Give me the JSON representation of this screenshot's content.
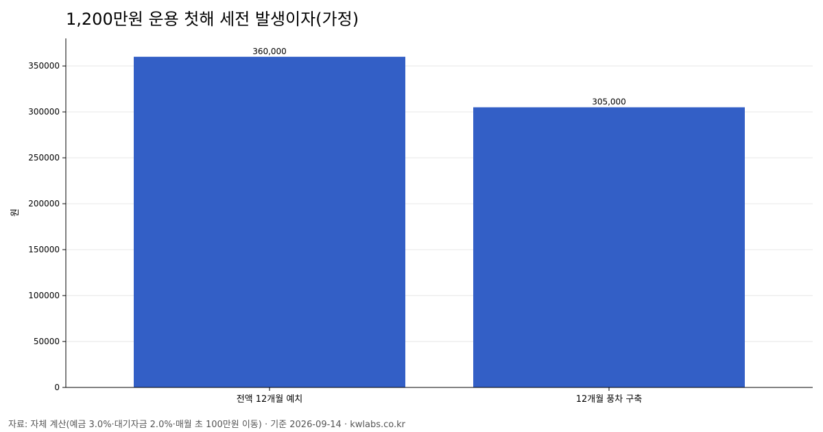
{
  "chart_data": {
    "type": "bar",
    "title": "1,200만원 운용 첫해 세전 발생이자(가정)",
    "xlabel": "",
    "ylabel": "원",
    "categories": [
      "전액 12개월 예치",
      "12개월 풍차 구축"
    ],
    "values": [
      360000,
      305000
    ],
    "data_labels": [
      "360,000",
      "305,000"
    ],
    "ylim": [
      0,
      380000
    ],
    "yticks": [
      0,
      50000,
      100000,
      150000,
      200000,
      250000,
      300000,
      350000
    ],
    "ytick_labels": [
      "0",
      "50000",
      "100000",
      "150000",
      "200000",
      "250000",
      "300000",
      "350000"
    ],
    "grid": true,
    "bar_color": "#335fc6"
  },
  "source": {
    "text": "자료: 자체 계산(예금 3.0%·대기자금 2.0%·매월 초 100만원 이동) · 기준 2026-09-14 · kwlabs.co.kr"
  }
}
